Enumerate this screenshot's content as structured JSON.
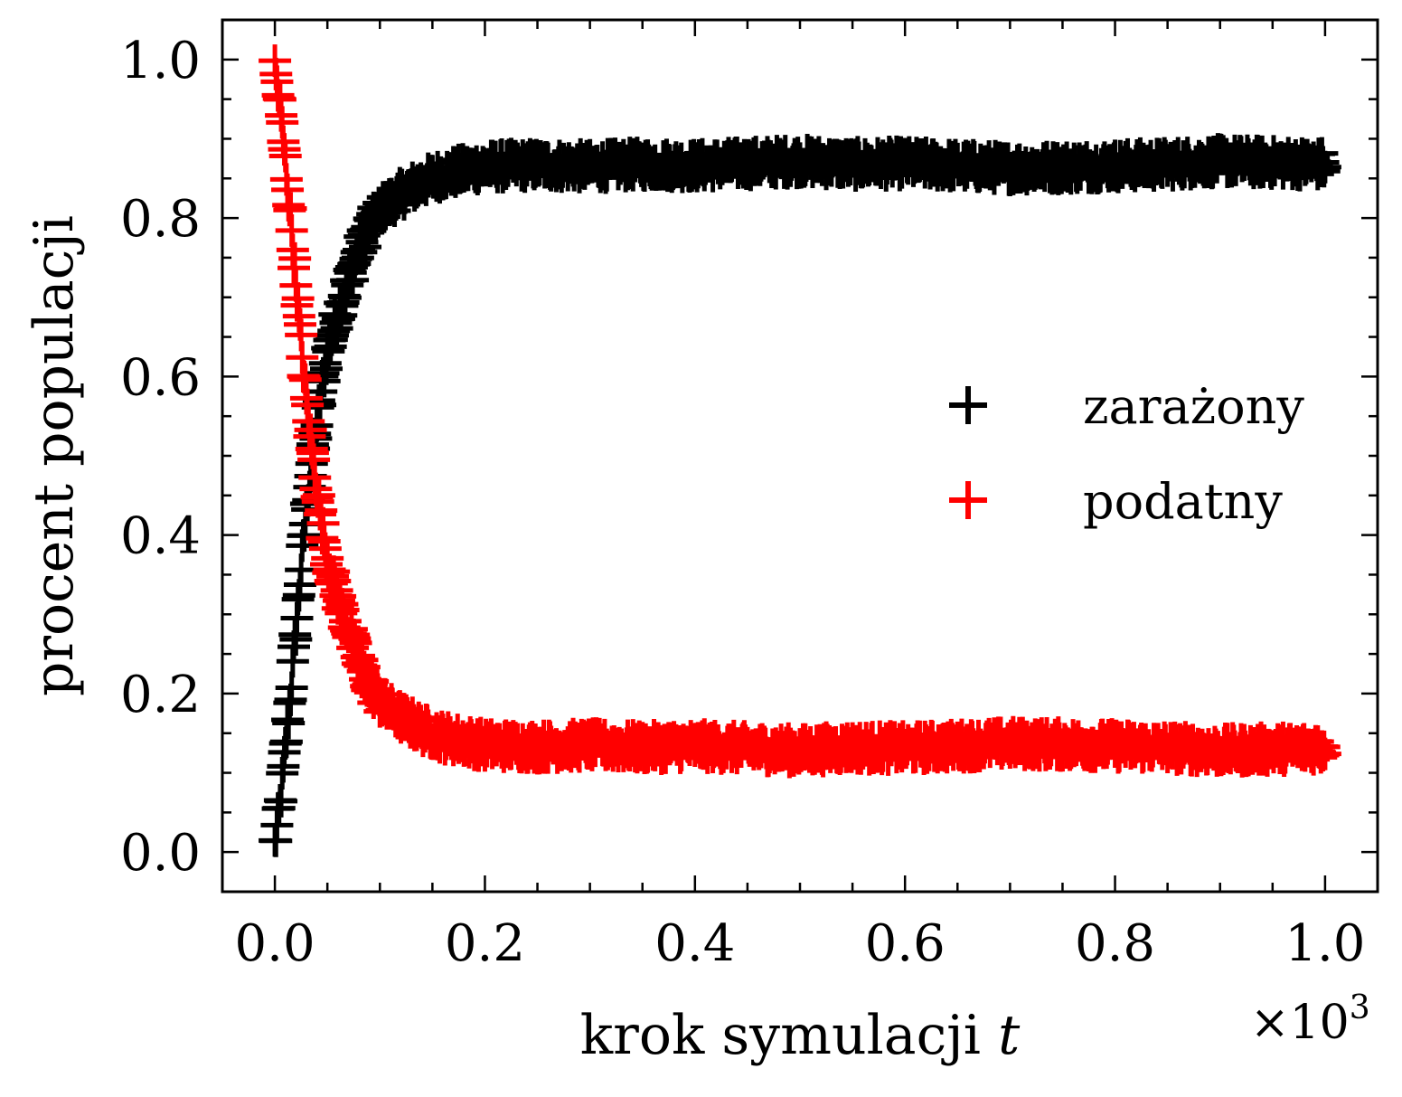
{
  "chart_data": {
    "type": "scatter",
    "title": "",
    "xlabel": "krok symulacji",
    "xlabel_var": "t",
    "ylabel": "procent populacji",
    "x_multiplier_base": "×10",
    "x_multiplier_exp": "3",
    "xlim": [
      -0.05,
      1.05
    ],
    "ylim": [
      -0.05,
      1.05
    ],
    "xticks": [
      0.0,
      0.2,
      0.4,
      0.6,
      0.8,
      1.0
    ],
    "xtick_labels": [
      "0.0",
      "0.2",
      "0.4",
      "0.6",
      "0.8",
      "1.0"
    ],
    "yticks": [
      0.0,
      0.2,
      0.4,
      0.6,
      0.8,
      1.0
    ],
    "ytick_labels": [
      "0.0",
      "0.2",
      "0.4",
      "0.6",
      "0.8",
      "1.0"
    ],
    "grid": false,
    "legend_position": "center-right",
    "marker": "+",
    "series": [
      {
        "name": "zarażony",
        "color": "#000000",
        "x": [
          0.0,
          0.005,
          0.01,
          0.015,
          0.02,
          0.025,
          0.03,
          0.035,
          0.04,
          0.045,
          0.05,
          0.06,
          0.07,
          0.08,
          0.09,
          0.1,
          0.12,
          0.14,
          0.16,
          0.18,
          0.2,
          0.25,
          0.3,
          0.35,
          0.4,
          0.45,
          0.5,
          0.55,
          0.6,
          0.65,
          0.7,
          0.75,
          0.8,
          0.85,
          0.9,
          0.95,
          1.0
        ],
        "y": [
          0.01,
          0.06,
          0.13,
          0.2,
          0.28,
          0.36,
          0.43,
          0.49,
          0.54,
          0.59,
          0.63,
          0.68,
          0.72,
          0.76,
          0.79,
          0.81,
          0.83,
          0.845,
          0.855,
          0.86,
          0.865,
          0.867,
          0.865,
          0.868,
          0.866,
          0.869,
          0.872,
          0.868,
          0.869,
          0.866,
          0.863,
          0.864,
          0.866,
          0.868,
          0.872,
          0.87,
          0.868
        ]
      },
      {
        "name": "podatny",
        "color": "#ff0000",
        "x": [
          0.0,
          0.005,
          0.01,
          0.015,
          0.02,
          0.025,
          0.03,
          0.035,
          0.04,
          0.045,
          0.05,
          0.06,
          0.07,
          0.08,
          0.09,
          0.1,
          0.12,
          0.14,
          0.16,
          0.18,
          0.2,
          0.25,
          0.3,
          0.35,
          0.4,
          0.45,
          0.5,
          0.55,
          0.6,
          0.65,
          0.7,
          0.75,
          0.8,
          0.85,
          0.9,
          0.95,
          1.0
        ],
        "y": [
          0.99,
          0.94,
          0.87,
          0.8,
          0.72,
          0.64,
          0.57,
          0.51,
          0.46,
          0.41,
          0.37,
          0.32,
          0.28,
          0.24,
          0.21,
          0.19,
          0.17,
          0.155,
          0.145,
          0.14,
          0.135,
          0.133,
          0.135,
          0.132,
          0.134,
          0.131,
          0.128,
          0.132,
          0.131,
          0.134,
          0.137,
          0.136,
          0.134,
          0.132,
          0.128,
          0.13,
          0.132
        ]
      }
    ]
  }
}
